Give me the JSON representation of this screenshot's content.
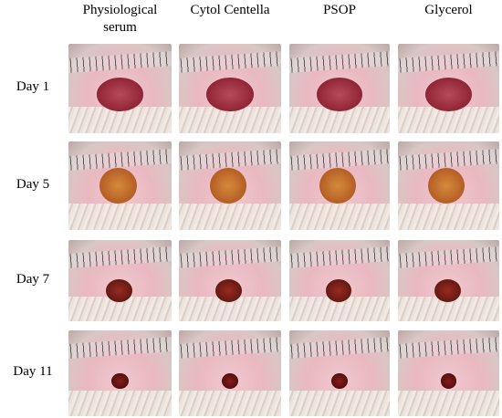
{
  "header": {
    "columns": [
      "Physiological serum",
      "Cytol Centella",
      "PSOP",
      "Glycerol"
    ]
  },
  "rows": [
    "Day 1",
    "Day 5",
    "Day 7",
    "Day 11"
  ]
}
